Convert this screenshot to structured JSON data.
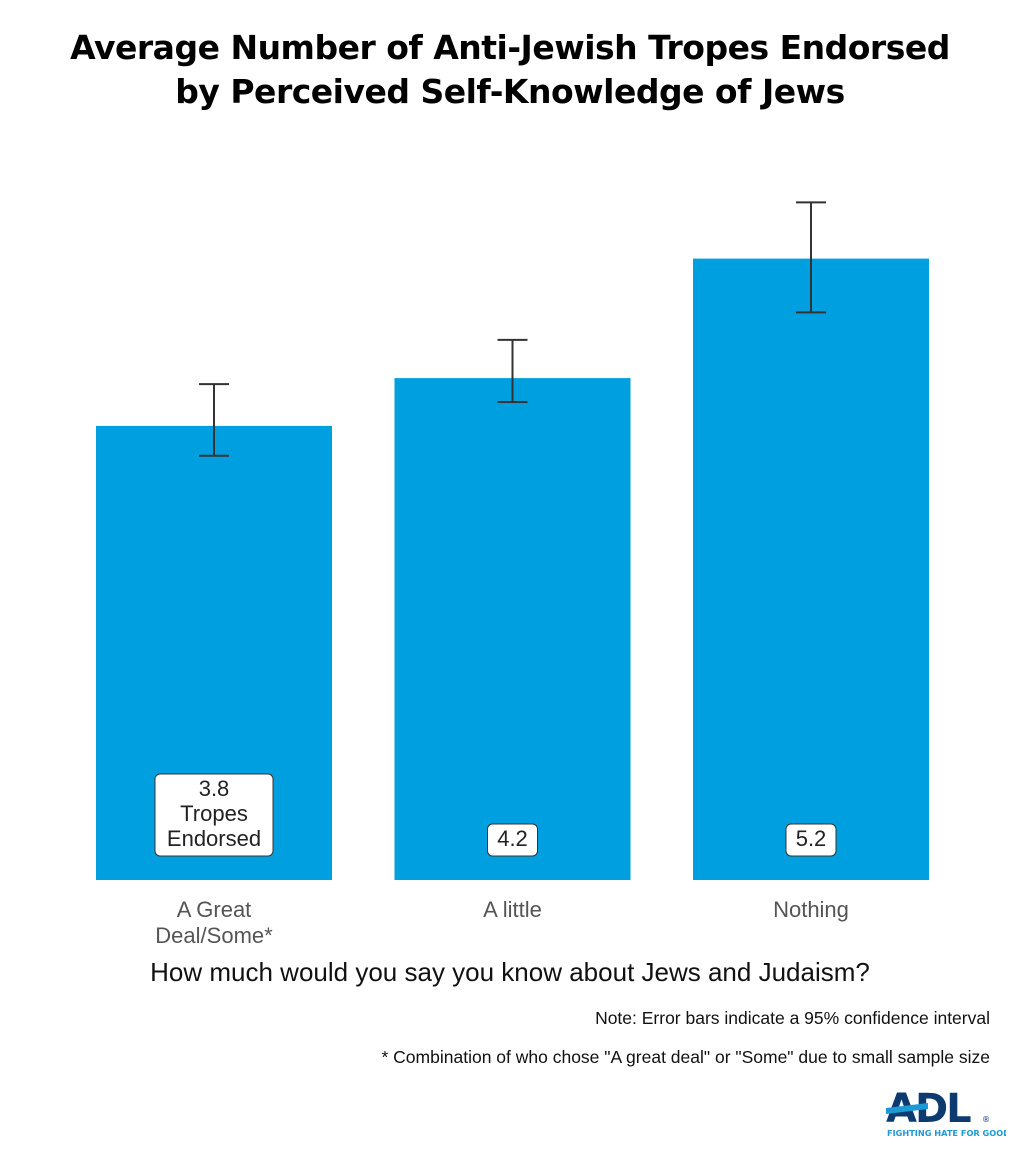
{
  "chart_data": {
    "type": "bar",
    "title": "Average Number of Anti-Jewish Tropes Endorsed by Perceived Self-Knowledge of Jews",
    "title_lines": [
      "Average Number of Anti-Jewish Tropes Endorsed",
      "by Perceived Self-Knowledge of Jews"
    ],
    "xlabel": "How much would you say you know about Jews and Judaism?",
    "ylabel": "",
    "categories": [
      "A Great Deal/Some*",
      "A little",
      "Nothing"
    ],
    "category_lines": [
      [
        "A Great",
        "Deal/Some*"
      ],
      [
        "A little"
      ],
      [
        "Nothing"
      ]
    ],
    "values": [
      3.8,
      4.2,
      5.2
    ],
    "error_low": [
      3.55,
      4.0,
      4.75
    ],
    "error_high": [
      4.15,
      4.52,
      5.67
    ],
    "data_labels": [
      [
        "3.8",
        "Tropes",
        "Endorsed"
      ],
      [
        "4.2"
      ],
      [
        "5.2"
      ]
    ],
    "ylim": [
      0,
      7.4
    ],
    "y_axis_shown": false,
    "grid": false,
    "bar_color": "#009fdf",
    "error_bar_color": "#333333"
  },
  "notes": {
    "error_bars": "Note: Error bars indicate a 95% confidence interval",
    "combination": "* Combination of who chose \"A great deal\" or \"Some\" due to small sample size"
  },
  "logo": {
    "text": "ADL",
    "tagline": "FIGHTING HATE FOR GOOD",
    "registered": "®",
    "dark_color": "#0d3b70",
    "light_color": "#1d9ad6"
  }
}
